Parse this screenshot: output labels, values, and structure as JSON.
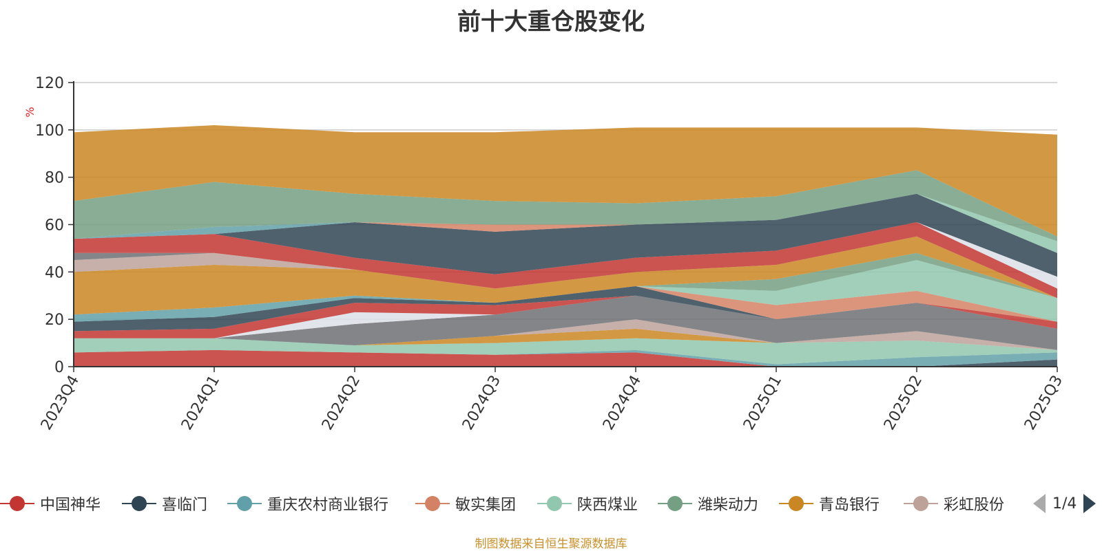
{
  "chart_data": {
    "type": "area",
    "stacked": true,
    "title": "前十大重仓股变化",
    "ylabel": "%",
    "ylim": [
      0,
      120
    ],
    "yticks": [
      0,
      20,
      40,
      60,
      80,
      100,
      120
    ],
    "grid": true,
    "categories": [
      "2023Q4",
      "2024Q1",
      "2024Q2",
      "2024Q3",
      "2024Q4",
      "2025Q1",
      "2025Q2",
      "2025Q3"
    ],
    "series": [
      {
        "name": "中国神华",
        "color": "#c23531",
        "values": [
          6,
          7,
          6,
          5,
          6,
          0,
          0,
          0
        ]
      },
      {
        "name": "",
        "color": "#2f4554",
        "values": [
          0,
          0,
          0,
          0,
          0,
          0,
          0,
          3
        ]
      },
      {
        "name": "",
        "color": "#61a0a8",
        "values": [
          0,
          0,
          0,
          0,
          1,
          1,
          4,
          3
        ]
      },
      {
        "name": "",
        "color": "#91c7ae",
        "values": [
          6,
          5,
          3,
          5,
          5,
          9,
          7,
          1
        ]
      },
      {
        "name": "",
        "color": "#ca8622",
        "values": [
          0,
          0,
          0,
          3,
          4,
          0,
          0,
          0
        ]
      },
      {
        "name": "",
        "color": "#bda29a",
        "values": [
          0,
          0,
          0,
          0,
          4,
          0,
          4,
          0
        ]
      },
      {
        "name": "",
        "color": "#6e7074",
        "values": [
          0,
          0,
          9,
          9,
          10,
          10,
          12,
          9
        ]
      },
      {
        "name": "",
        "color": "#dcdfe6",
        "values": [
          0,
          0,
          5,
          0,
          0,
          0,
          0,
          0
        ]
      },
      {
        "name": "",
        "color": "#c23531",
        "values": [
          3,
          4,
          4,
          4,
          0,
          0,
          0,
          3
        ]
      },
      {
        "name": "",
        "color": "#2f4554",
        "values": [
          4,
          5,
          2,
          1,
          4,
          0,
          0,
          0
        ]
      },
      {
        "name": "",
        "color": "#61a0a8",
        "values": [
          3,
          4,
          1,
          0,
          0,
          0,
          0,
          0
        ]
      },
      {
        "name": "",
        "color": "#d48265",
        "values": [
          0,
          0,
          0,
          0,
          0,
          6,
          5,
          0
        ]
      },
      {
        "name": "",
        "color": "#91c7ae",
        "values": [
          0,
          0,
          0,
          0,
          0,
          6,
          13,
          10
        ]
      },
      {
        "name": "",
        "color": "#749f83",
        "values": [
          0,
          0,
          0,
          0,
          0,
          5,
          3,
          0
        ]
      },
      {
        "name": "",
        "color": "#ca8622",
        "values": [
          18,
          18,
          11,
          6,
          6,
          6,
          7,
          0
        ]
      },
      {
        "name": "",
        "color": "#bda29a",
        "values": [
          5,
          5,
          0,
          0,
          0,
          0,
          0,
          0
        ]
      },
      {
        "name": "",
        "color": "#6e7074",
        "values": [
          3,
          0,
          0,
          0,
          0,
          0,
          0,
          0
        ]
      },
      {
        "name": "",
        "color": "#c23531",
        "values": [
          6,
          8,
          5,
          6,
          6,
          6,
          6,
          4
        ]
      },
      {
        "name": "",
        "color": "#dcdfe6",
        "values": [
          0,
          0,
          0,
          0,
          0,
          0,
          0,
          5
        ]
      },
      {
        "name": "",
        "color": "#2f4554",
        "values": [
          0,
          0,
          15,
          18,
          14,
          13,
          12,
          10
        ]
      },
      {
        "name": "",
        "color": "#61a0a8",
        "values": [
          0,
          3,
          0,
          0,
          0,
          0,
          0,
          0
        ]
      },
      {
        "name": "",
        "color": "#d48265",
        "values": [
          0,
          0,
          0,
          3,
          0,
          0,
          0,
          0
        ]
      },
      {
        "name": "",
        "color": "#91c7ae",
        "values": [
          0,
          0,
          0,
          0,
          0,
          0,
          0,
          5
        ]
      },
      {
        "name": "",
        "color": "#749f83",
        "values": [
          16,
          19,
          12,
          10,
          9,
          10,
          10,
          2
        ]
      },
      {
        "name": "",
        "color": "#ca8622",
        "values": [
          29,
          24,
          26,
          29,
          32,
          29,
          18,
          43
        ]
      }
    ],
    "legend": {
      "position": "bottom",
      "items": [
        {
          "label": "中国神华",
          "color": "#c23531"
        },
        {
          "label": "喜临门",
          "color": "#2f4554"
        },
        {
          "label": "重庆农村商业银行",
          "color": "#61a0a8"
        },
        {
          "label": "敏实集团",
          "color": "#d48265"
        },
        {
          "label": "陕西煤业",
          "color": "#91c7ae"
        },
        {
          "label": "潍柴动力",
          "color": "#749f83"
        },
        {
          "label": "青岛银行",
          "color": "#ca8622"
        },
        {
          "label": "彩虹股份",
          "color": "#bda29a"
        }
      ],
      "page": "1/4"
    },
    "source_note": "制图数据来自恒生聚源数据库"
  }
}
